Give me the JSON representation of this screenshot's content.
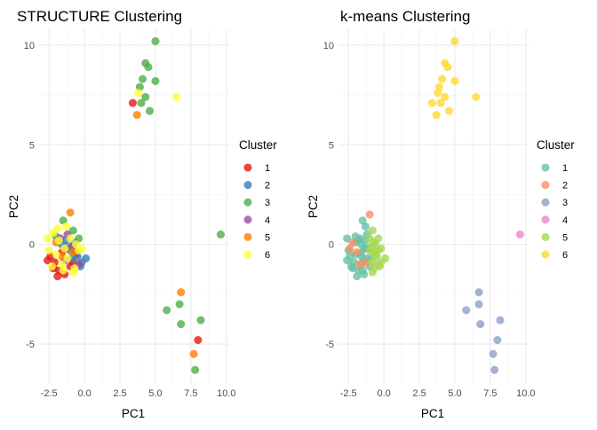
{
  "chart_data": [
    {
      "type": "scatter",
      "title": "STRUCTURE Clustering",
      "xlabel": "PC1",
      "ylabel": "PC2",
      "xlim": [
        -3.2,
        10.2
      ],
      "ylim": [
        -7.0,
        10.8
      ],
      "xticks": [
        -2.5,
        0.0,
        2.5,
        5.0,
        7.5,
        10.0
      ],
      "xtick_labels": [
        "-2.5",
        "0.0",
        "2.5",
        "5.0",
        "7.5",
        "10.0"
      ],
      "yticks": [
        -5,
        0,
        5,
        10
      ],
      "ytick_labels": [
        "-5",
        "0",
        "5",
        "10"
      ],
      "grid": true,
      "legend_title": "Cluster",
      "legend_position": "right",
      "series": [
        {
          "name": "1",
          "color": "#E41A1C",
          "points": [
            [
              3.4,
              7.1
            ],
            [
              8.0,
              -4.8
            ],
            [
              -2.1,
              -0.9
            ],
            [
              -1.8,
              -1.3
            ],
            [
              -1.4,
              -1.5
            ],
            [
              -2.4,
              -0.6
            ],
            [
              -1.0,
              -1.1
            ],
            [
              -1.6,
              -0.4
            ],
            [
              -2.2,
              -1.2
            ],
            [
              -1.2,
              -0.2
            ],
            [
              -0.8,
              -0.9
            ],
            [
              -1.9,
              -1.6
            ],
            [
              -2.6,
              -0.8
            ],
            [
              -0.6,
              -0.5
            ]
          ]
        },
        {
          "name": "2",
          "color": "#377EB8",
          "points": [
            [
              -0.5,
              -0.6
            ],
            [
              -0.2,
              -0.9
            ],
            [
              -1.0,
              -0.3
            ],
            [
              -0.7,
              0.1
            ],
            [
              -0.3,
              -1.1
            ],
            [
              -1.3,
              0.2
            ],
            [
              0.1,
              -0.7
            ],
            [
              -0.9,
              -0.7
            ],
            [
              -1.6,
              0.0
            ]
          ]
        },
        {
          "name": "3",
          "color": "#4DAF4A",
          "points": [
            [
              5.0,
              10.2
            ],
            [
              4.3,
              9.1
            ],
            [
              4.5,
              8.9
            ],
            [
              4.1,
              8.3
            ],
            [
              3.9,
              7.9
            ],
            [
              5.0,
              8.2
            ],
            [
              4.3,
              7.4
            ],
            [
              4.0,
              7.1
            ],
            [
              4.6,
              6.7
            ],
            [
              9.6,
              0.5
            ],
            [
              5.8,
              -3.3
            ],
            [
              6.7,
              -3.0
            ],
            [
              8.2,
              -3.8
            ],
            [
              6.8,
              -4.0
            ],
            [
              7.8,
              -6.3
            ],
            [
              -1.5,
              1.2
            ],
            [
              -0.8,
              0.7
            ],
            [
              -2.0,
              0.4
            ],
            [
              -1.1,
              -0.2
            ],
            [
              -0.4,
              0.3
            ]
          ]
        },
        {
          "name": "4",
          "color": "#984EA3",
          "points": [
            [
              -1.2,
              0.5
            ],
            [
              -0.9,
              -0.1
            ],
            [
              -1.7,
              0.3
            ],
            [
              -0.6,
              -0.3
            ],
            [
              -1.4,
              -0.8
            ],
            [
              -0.4,
              -1.0
            ]
          ]
        },
        {
          "name": "5",
          "color": "#FF7F00",
          "points": [
            [
              3.7,
              6.5
            ],
            [
              6.8,
              -2.4
            ],
            [
              7.7,
              -5.5
            ],
            [
              -1.0,
              1.6
            ],
            [
              -1.6,
              -0.6
            ],
            [
              -0.8,
              -0.4
            ],
            [
              -2.0,
              0.1
            ]
          ]
        },
        {
          "name": "6",
          "color": "#FFFF33",
          "points": [
            [
              6.5,
              7.4
            ],
            [
              3.8,
              7.6
            ],
            [
              -2.2,
              0.6
            ],
            [
              -1.8,
              0.2
            ],
            [
              -1.4,
              -0.2
            ],
            [
              -1.0,
              0.3
            ],
            [
              -0.6,
              0.0
            ],
            [
              -2.5,
              -0.3
            ],
            [
              -1.6,
              -1.0
            ],
            [
              -0.7,
              -1.2
            ],
            [
              -1.2,
              -0.7
            ],
            [
              -2.3,
              -1.1
            ],
            [
              -0.4,
              -0.3
            ],
            [
              -1.9,
              0.8
            ],
            [
              -1.3,
              0.9
            ],
            [
              -0.8,
              -1.4
            ],
            [
              -2.6,
              0.3
            ],
            [
              -0.2,
              -0.2
            ],
            [
              -1.5,
              -1.3
            ],
            [
              -2.0,
              -0.5
            ]
          ]
        }
      ]
    },
    {
      "type": "scatter",
      "title": "k-means Clustering",
      "xlabel": "PC1",
      "ylabel": "PC2",
      "xlim": [
        -3.2,
        10.2
      ],
      "ylim": [
        -7.0,
        10.8
      ],
      "xticks": [
        -2.5,
        0.0,
        2.5,
        5.0,
        7.5,
        10.0
      ],
      "xtick_labels": [
        "-2.5",
        "0.0",
        "2.5",
        "5.0",
        "7.5",
        "10.0"
      ],
      "yticks": [
        -5,
        0,
        5,
        10
      ],
      "ytick_labels": [
        "-5",
        "0",
        "5",
        "10"
      ],
      "grid": true,
      "legend_title": "Cluster",
      "legend_position": "right",
      "series": [
        {
          "name": "1",
          "color": "#66C2A5",
          "points": [
            [
              -2.1,
              -0.9
            ],
            [
              -1.8,
              -1.3
            ],
            [
              -1.4,
              -1.5
            ],
            [
              -2.4,
              -0.6
            ],
            [
              -1.0,
              -1.1
            ],
            [
              -1.6,
              -0.4
            ],
            [
              -2.2,
              -1.2
            ],
            [
              -1.2,
              -0.2
            ],
            [
              -1.9,
              -1.6
            ],
            [
              -2.6,
              -0.8
            ],
            [
              -1.5,
              1.2
            ],
            [
              -2.0,
              0.4
            ],
            [
              -1.1,
              -0.2
            ],
            [
              -1.2,
              0.5
            ],
            [
              -1.7,
              0.3
            ],
            [
              -1.4,
              -0.8
            ],
            [
              -1.6,
              -0.6
            ],
            [
              -2.0,
              0.1
            ],
            [
              -1.8,
              0.2
            ],
            [
              -1.4,
              -0.2
            ],
            [
              -2.5,
              -0.3
            ],
            [
              -1.6,
              -1.0
            ],
            [
              -1.2,
              -0.7
            ],
            [
              -2.3,
              -1.1
            ],
            [
              -1.3,
              0.9
            ],
            [
              -2.6,
              0.3
            ],
            [
              -1.5,
              -1.3
            ],
            [
              -2.0,
              -0.5
            ],
            [
              -1.3,
              0.2
            ],
            [
              -1.6,
              0.0
            ],
            [
              -0.9,
              -0.7
            ]
          ]
        },
        {
          "name": "2",
          "color": "#FC8D62",
          "points": [
            [
              -1.7,
              -1.0
            ],
            [
              -2.2,
              0.1
            ],
            [
              -1.0,
              1.5
            ],
            [
              -1.9,
              -0.4
            ],
            [
              -1.3,
              -0.9
            ],
            [
              -2.4,
              -0.2
            ]
          ]
        },
        {
          "name": "3",
          "color": "#8DA0CB",
          "points": [
            [
              5.8,
              -3.3
            ],
            [
              6.7,
              -2.4
            ],
            [
              6.7,
              -3.0
            ],
            [
              8.2,
              -3.8
            ],
            [
              6.8,
              -4.0
            ],
            [
              8.0,
              -4.8
            ],
            [
              7.7,
              -5.5
            ],
            [
              7.8,
              -6.3
            ]
          ]
        },
        {
          "name": "4",
          "color": "#E78AC3",
          "points": [
            [
              9.6,
              0.5
            ]
          ]
        },
        {
          "name": "5",
          "color": "#A6D854",
          "points": [
            [
              -0.5,
              -0.6
            ],
            [
              -0.2,
              -0.9
            ],
            [
              -0.7,
              0.1
            ],
            [
              -0.3,
              -1.1
            ],
            [
              0.1,
              -0.7
            ],
            [
              -0.6,
              -0.3
            ],
            [
              -0.4,
              -1.0
            ],
            [
              -0.8,
              -0.4
            ],
            [
              -0.6,
              0.0
            ],
            [
              -0.7,
              -1.2
            ],
            [
              -0.4,
              -0.3
            ],
            [
              -0.8,
              -1.4
            ],
            [
              -0.2,
              -0.2
            ],
            [
              -0.8,
              0.7
            ],
            [
              -0.4,
              0.3
            ],
            [
              -1.0,
              -0.3
            ],
            [
              -0.9,
              -0.1
            ],
            [
              -0.6,
              -0.5
            ],
            [
              -0.8,
              -0.9
            ],
            [
              -1.0,
              0.3
            ]
          ]
        },
        {
          "name": "6",
          "color": "#FFD92F",
          "points": [
            [
              5.0,
              10.2
            ],
            [
              4.3,
              9.1
            ],
            [
              4.5,
              8.9
            ],
            [
              4.1,
              8.3
            ],
            [
              3.9,
              7.9
            ],
            [
              5.0,
              8.2
            ],
            [
              4.3,
              7.4
            ],
            [
              4.0,
              7.1
            ],
            [
              4.6,
              6.7
            ],
            [
              3.4,
              7.1
            ],
            [
              3.7,
              6.5
            ],
            [
              6.5,
              7.4
            ],
            [
              3.8,
              7.6
            ]
          ]
        }
      ]
    }
  ]
}
